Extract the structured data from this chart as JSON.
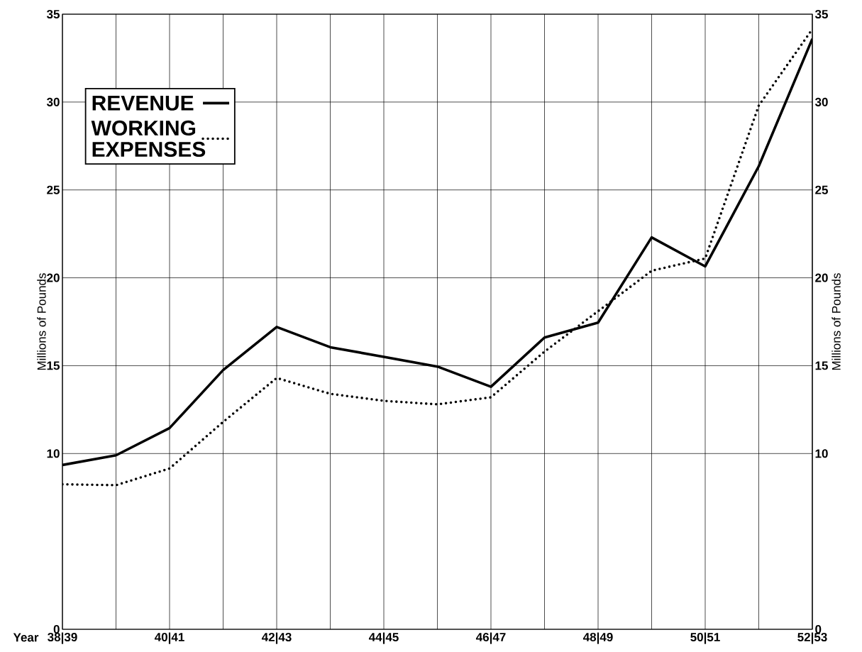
{
  "chart_data": {
    "type": "line",
    "xlabel": "Year",
    "ylabel": "Millions of Pounds",
    "y2label": "Millions of Pounds",
    "categories": [
      "38|39",
      null,
      "40|41",
      null,
      "42|43",
      null,
      "44|45",
      null,
      "46|47",
      null,
      "48|49",
      null,
      "50|51",
      null,
      "52|53"
    ],
    "series": [
      {
        "name": "REVENUE",
        "color": "#000000",
        "line_style": "solid",
        "values": [
          9.35,
          9.9,
          11.45,
          14.75,
          17.2,
          16.05,
          15.5,
          14.95,
          13.8,
          16.6,
          17.45,
          22.3,
          20.65,
          26.35,
          33.6
        ]
      },
      {
        "name": "WORKING EXPENSES",
        "color": "#000000",
        "line_style": "dotted",
        "values": [
          8.25,
          8.2,
          9.15,
          11.8,
          14.3,
          13.4,
          13.0,
          12.8,
          13.2,
          15.8,
          18.1,
          20.4,
          21.1,
          29.8,
          34.15
        ]
      }
    ],
    "ylim": [
      0,
      35
    ],
    "yticks": [
      0,
      10,
      15,
      20,
      25,
      30,
      35
    ],
    "y2lim": [
      0,
      35
    ],
    "y2ticks": [
      0,
      10,
      15,
      20,
      25,
      30,
      35
    ],
    "grid": true,
    "legend": "top left"
  }
}
